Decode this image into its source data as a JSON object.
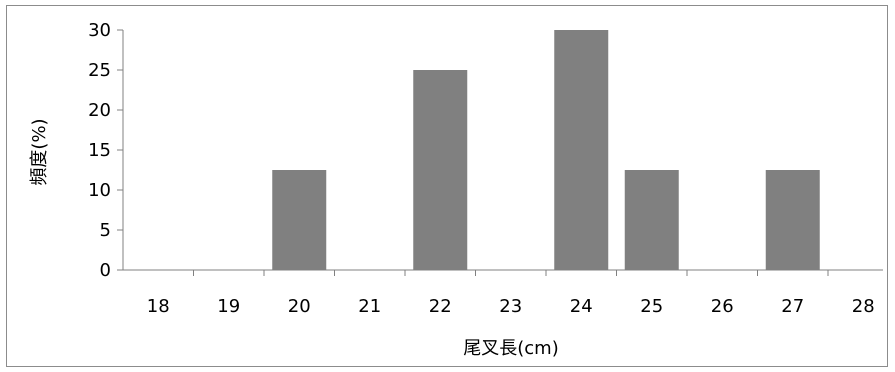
{
  "chart_data": {
    "type": "bar",
    "categories": [
      "18",
      "19",
      "20",
      "21",
      "22",
      "23",
      "24",
      "25",
      "26",
      "27",
      "28"
    ],
    "values": [
      0,
      0,
      12.5,
      0,
      25,
      0,
      30,
      12.5,
      0,
      12.5,
      0
    ],
    "xlabel": "尾叉長(cm)",
    "ylabel": "頻度(%)",
    "ylim": [
      0,
      30
    ],
    "yticks": [
      "0",
      "5",
      "10",
      "15",
      "20",
      "25",
      "30"
    ],
    "grid": false,
    "legend": "none",
    "bar_color": "#808080"
  }
}
